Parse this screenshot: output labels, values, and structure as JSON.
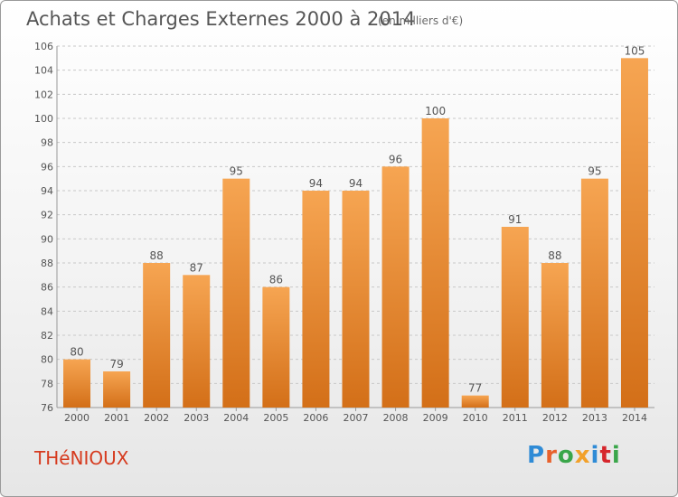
{
  "header": {
    "title": "Achats et Charges Externes 2000 à 2014",
    "subtitle": "(en milliers d'€)"
  },
  "footer": {
    "town": "THéNIOUX",
    "logo_text": "Proxiti",
    "logo_colors": [
      "#2f8bd6",
      "#e8612c",
      "#3aa64a",
      "#f2a12a",
      "#2f8bd6",
      "#d6262c",
      "#3aa64a"
    ]
  },
  "colors": {
    "bar_light": "#f6a552",
    "bar_dark": "#d36f18",
    "grid": "#c8c8c8",
    "axis_text": "#555555"
  },
  "chart_data": {
    "type": "bar",
    "title": "Achats et Charges Externes 2000 à 2014",
    "subtitle": "(en milliers d'€)",
    "xlabel": "",
    "ylabel": "",
    "categories": [
      "2000",
      "2001",
      "2002",
      "2003",
      "2004",
      "2005",
      "2006",
      "2007",
      "2008",
      "2009",
      "2010",
      "2011",
      "2012",
      "2013",
      "2014"
    ],
    "values": [
      80,
      79,
      88,
      87,
      95,
      86,
      94,
      94,
      96,
      100,
      77,
      91,
      88,
      95,
      105
    ],
    "ylim": [
      76,
      106
    ],
    "yticks": [
      76,
      78,
      80,
      82,
      84,
      86,
      88,
      90,
      92,
      94,
      96,
      98,
      100,
      102,
      104,
      106
    ],
    "grid": true,
    "data_labels": true
  }
}
